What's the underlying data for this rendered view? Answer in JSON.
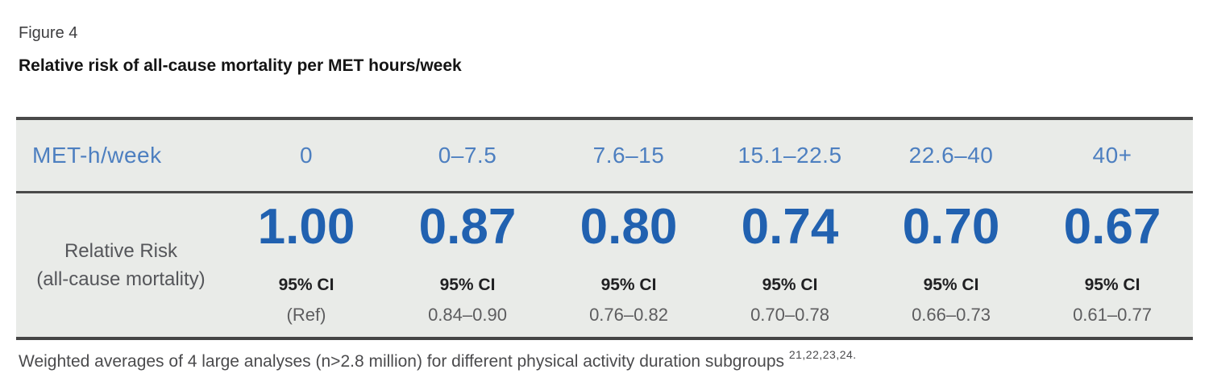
{
  "figure": {
    "label": "Figure 4",
    "title": "Relative risk of all-cause mortality per MET hours/week"
  },
  "table": {
    "header_label": "MET-h/week",
    "row_label_line1": "Relative Risk",
    "row_label_line2": "(all-cause mortality)",
    "columns": [
      {
        "range": "0",
        "risk": "1.00",
        "ci_label": "95% CI",
        "ci": "(Ref)"
      },
      {
        "range": "0–7.5",
        "risk": "0.87",
        "ci_label": "95% CI",
        "ci": "0.84–0.90"
      },
      {
        "range": "7.6–15",
        "risk": "0.80",
        "ci_label": "95% CI",
        "ci": "0.76–0.82"
      },
      {
        "range": "15.1–22.5",
        "risk": "0.74",
        "ci_label": "95% CI",
        "ci": "0.70–0.78"
      },
      {
        "range": "22.6–40",
        "risk": "0.70",
        "ci_label": "95% CI",
        "ci": "0.66–0.73"
      },
      {
        "range": "40+",
        "risk": "0.67",
        "ci_label": "95% CI",
        "ci": "0.61–0.77"
      }
    ]
  },
  "footnote": {
    "text": "Weighted averages of 4 large analyses (n>2.8 million) for different physical activity duration subgroups ",
    "references": "21,22,23,24."
  },
  "colors": {
    "table_background": "#e9ebe8",
    "rule_dark": "#4a4a4a",
    "header_blue": "#4d7fc0",
    "value_blue": "#2161b0",
    "label_gray": "#55565a",
    "range_gray": "#5d5d5f"
  },
  "chart_data": {
    "type": "table",
    "title": "Relative risk of all-cause mortality per MET hours/week",
    "x_label": "MET-h/week",
    "categories": [
      "0",
      "0–7.5",
      "7.6–15",
      "15.1–22.5",
      "22.6–40",
      "40+"
    ],
    "series": [
      {
        "name": "Relative Risk (all-cause mortality)",
        "values": [
          1.0,
          0.87,
          0.8,
          0.74,
          0.7,
          0.67
        ]
      },
      {
        "name": "95% CI low",
        "values": [
          null,
          0.84,
          0.76,
          0.7,
          0.66,
          0.61
        ]
      },
      {
        "name": "95% CI high",
        "values": [
          null,
          0.9,
          0.82,
          0.78,
          0.73,
          0.77
        ]
      }
    ],
    "reference_category": "0",
    "note": "Weighted averages of 4 large analyses (n>2.8 million) for different physical activity duration subgroups 21,22,23,24."
  }
}
